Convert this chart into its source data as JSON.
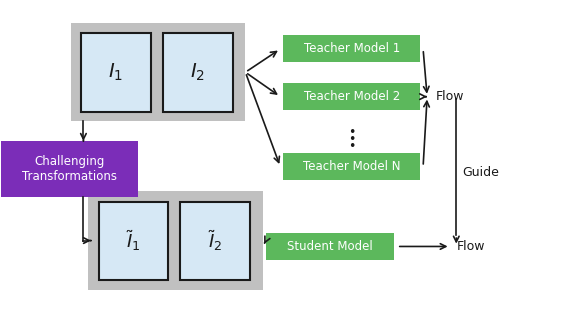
{
  "fig_width": 5.84,
  "fig_height": 3.1,
  "dpi": 100,
  "bg_color": "#ffffff",
  "gray_box_color": "#c0c0c0",
  "image_box_color": "#d6e8f5",
  "image_box_border": "#1a1a1a",
  "purple_box_color": "#7b2db8",
  "green_box_color": "#5cb85c",
  "text_white": "#ffffff",
  "text_black": "#1a1a1a",
  "arrow_color": "#1a1a1a",
  "teacher_labels": [
    "Teacher Model 1",
    "Teacher Model 2",
    "Teacher Model N"
  ],
  "student_label": "Student Model",
  "challenge_label": "Challenging\nTransformations",
  "flow_label": "Flow",
  "guide_label": "Guide",
  "flow_label2": "Flow",
  "I1_label": "$I_1$",
  "I2_label": "$I_2$",
  "I1t_label": "$\\tilde{I}_1$",
  "I2t_label": "$\\tilde{I}_2$",
  "xlim": [
    0,
    10
  ],
  "ylim": [
    0,
    5.5
  ]
}
